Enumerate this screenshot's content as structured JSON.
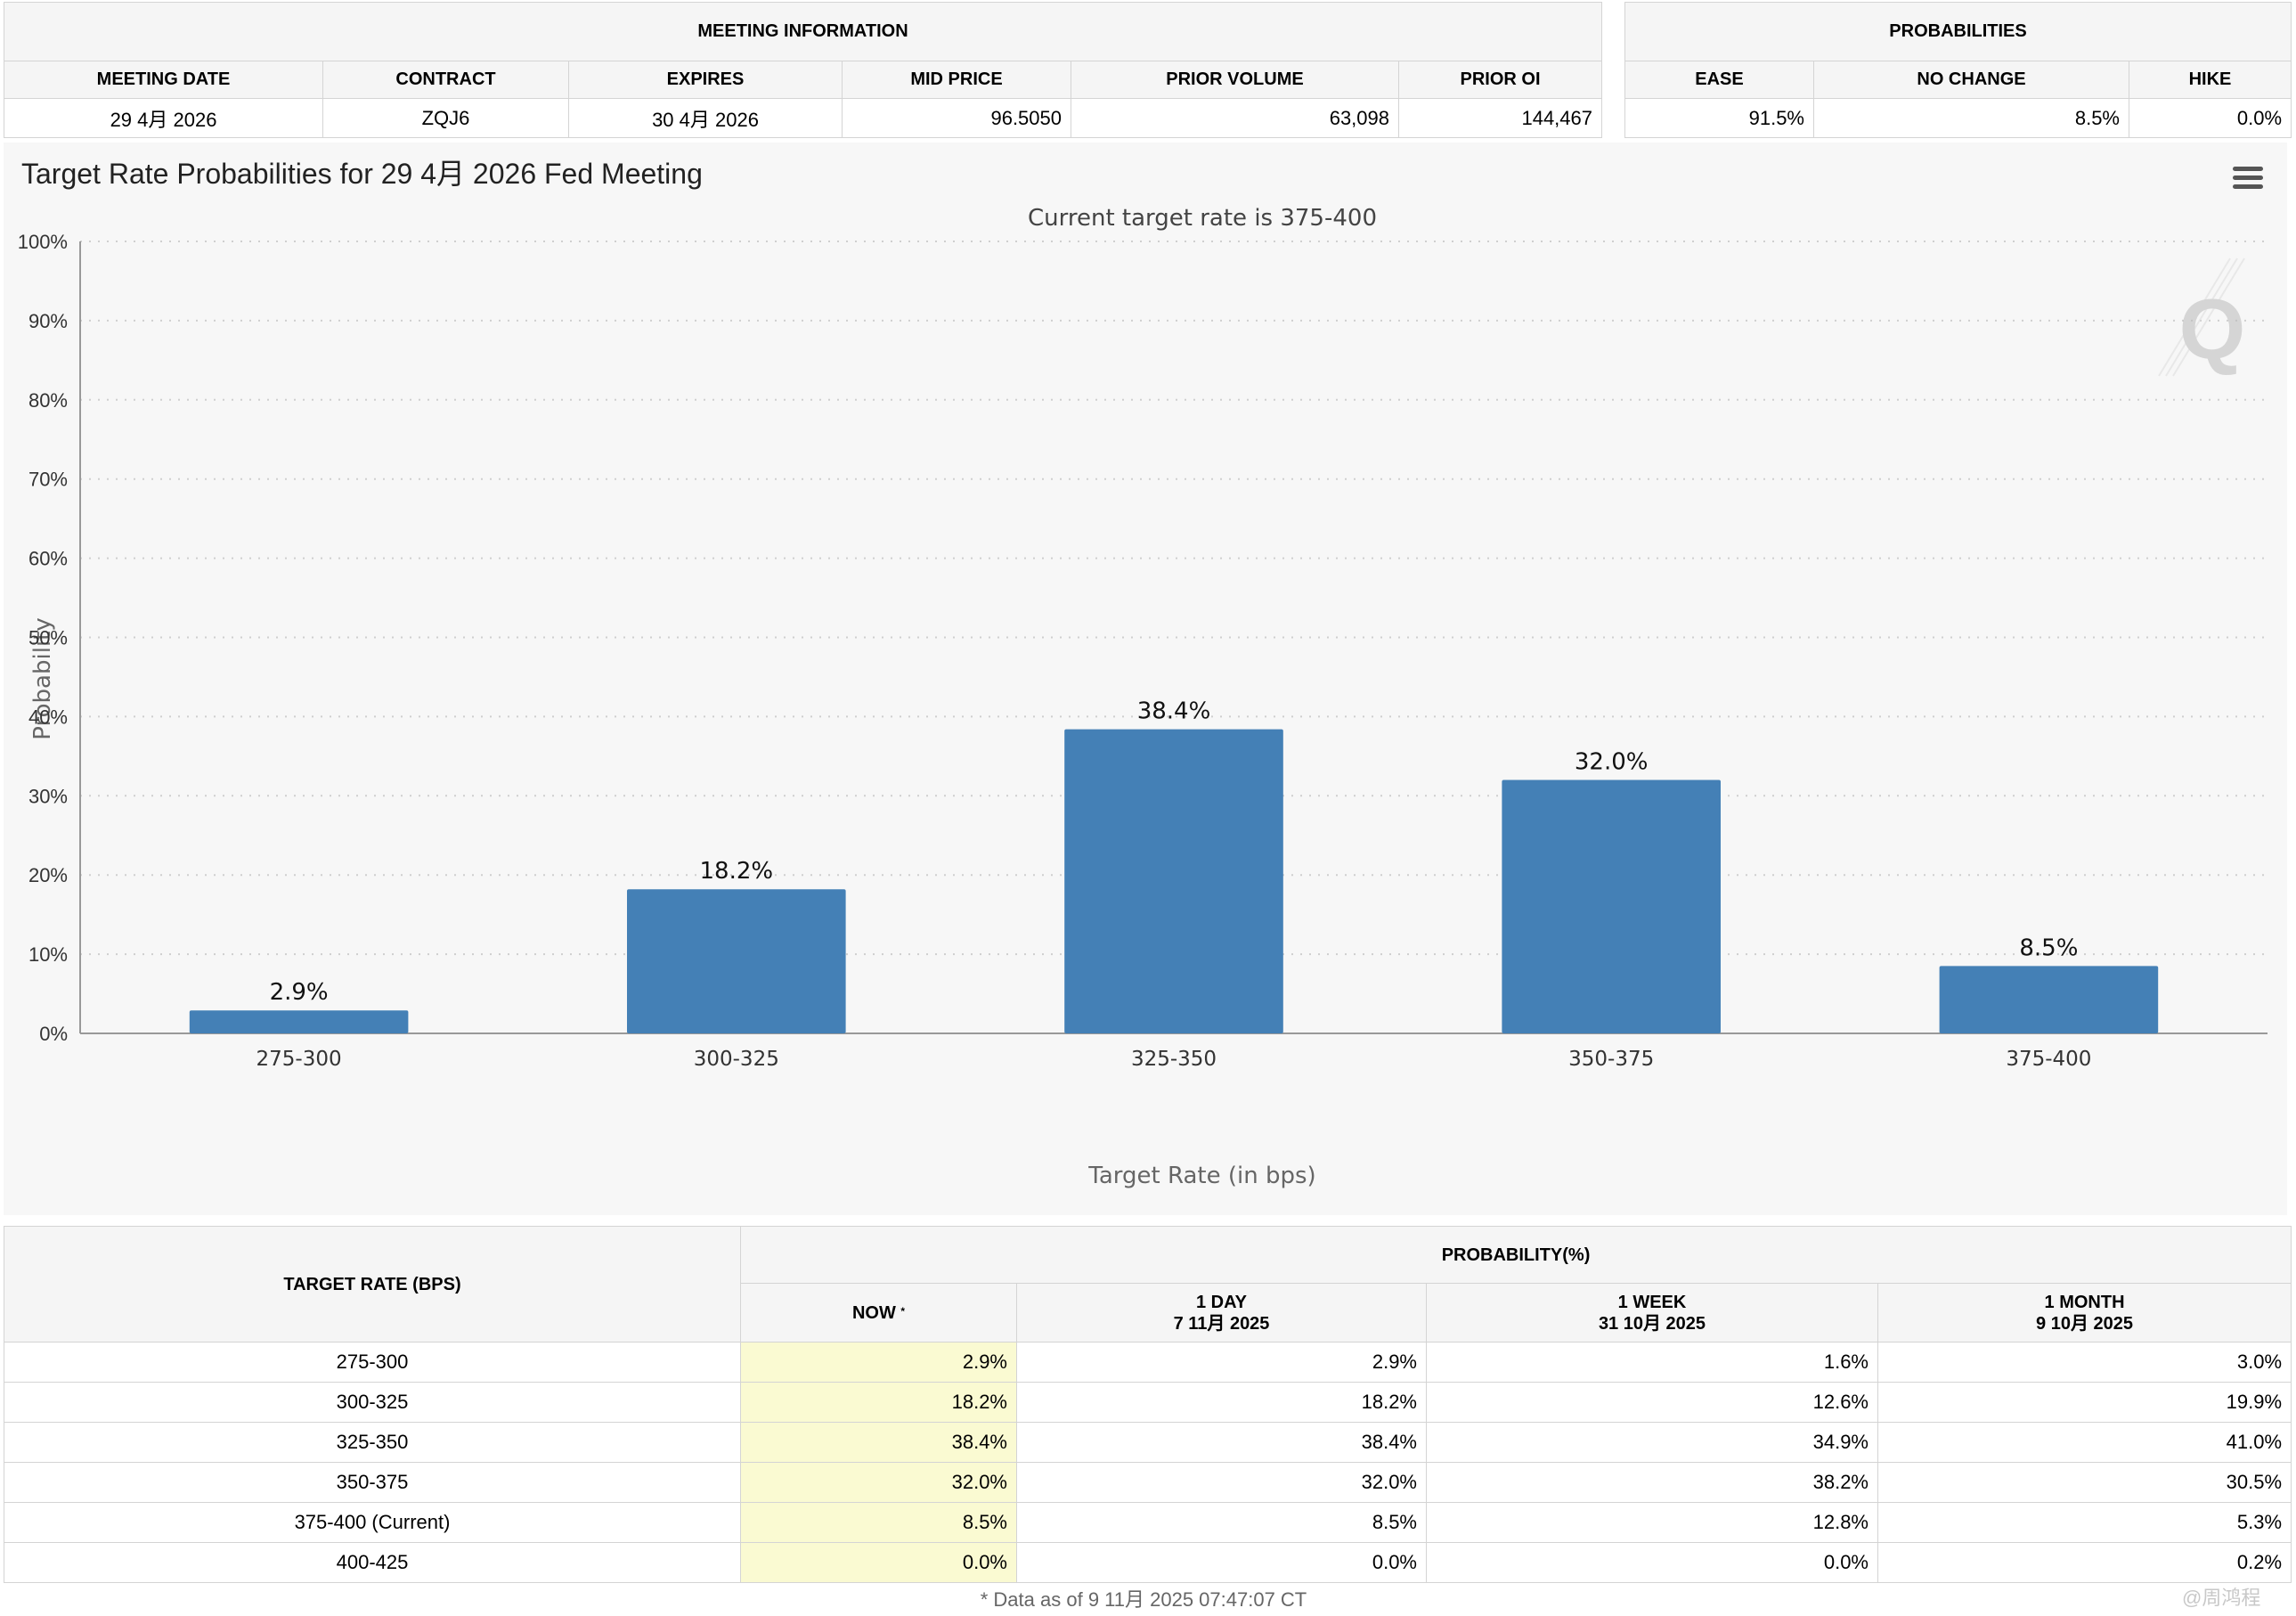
{
  "meeting_info": {
    "title": "MEETING INFORMATION",
    "headers": [
      "MEETING DATE",
      "CONTRACT",
      "EXPIRES",
      "MID PRICE",
      "PRIOR VOLUME",
      "PRIOR OI"
    ],
    "values": [
      "29 4月 2026",
      "ZQJ6",
      "30 4月 2026",
      "96.5050",
      "63,098",
      "144,467"
    ]
  },
  "probabilities_summary": {
    "title": "PROBABILITIES",
    "headers": [
      "EASE",
      "NO CHANGE",
      "HIKE"
    ],
    "values": [
      "91.5%",
      "8.5%",
      "0.0%"
    ]
  },
  "chart_data": {
    "type": "bar",
    "title": "Target Rate Probabilities for 29 4月 2026 Fed Meeting",
    "subtitle": "Current target rate is 375-400",
    "xlabel": "Target Rate (in bps)",
    "ylabel": "Probability",
    "categories": [
      "275-300",
      "300-325",
      "325-350",
      "350-375",
      "375-400"
    ],
    "values": [
      2.9,
      18.2,
      38.4,
      32.0,
      8.5
    ],
    "data_labels": [
      "2.9%",
      "18.2%",
      "38.4%",
      "32.0%",
      "8.5%"
    ],
    "ylim": [
      0,
      100
    ],
    "yticks": [
      0,
      10,
      20,
      30,
      40,
      50,
      60,
      70,
      80,
      90,
      100
    ],
    "ytick_labels": [
      "0%",
      "10%",
      "20%",
      "30%",
      "40%",
      "50%",
      "60%",
      "70%",
      "80%",
      "90%",
      "100%"
    ],
    "grid": true,
    "bar_color": "#4480b6",
    "logo_letter": "Q"
  },
  "probability_table": {
    "rate_header": "TARGET RATE (BPS)",
    "group_header": "PROBABILITY(%)",
    "columns": [
      {
        "label": "NOW",
        "marker": "*",
        "date": ""
      },
      {
        "label": "1 DAY",
        "date": "7 11月 2025"
      },
      {
        "label": "1 WEEK",
        "date": "31 10月 2025"
      },
      {
        "label": "1 MONTH",
        "date": "9 10月 2025"
      }
    ],
    "rows": [
      {
        "rate": "275-300",
        "now": "2.9%",
        "day": "2.9%",
        "week": "1.6%",
        "month": "3.0%"
      },
      {
        "rate": "300-325",
        "now": "18.2%",
        "day": "18.2%",
        "week": "12.6%",
        "month": "19.9%"
      },
      {
        "rate": "325-350",
        "now": "38.4%",
        "day": "38.4%",
        "week": "34.9%",
        "month": "41.0%"
      },
      {
        "rate": "350-375",
        "now": "32.0%",
        "day": "32.0%",
        "week": "38.2%",
        "month": "30.5%"
      },
      {
        "rate": "375-400 (Current)",
        "now": "8.5%",
        "day": "8.5%",
        "week": "12.8%",
        "month": "5.3%"
      },
      {
        "rate": "400-425",
        "now": "0.0%",
        "day": "0.0%",
        "week": "0.0%",
        "month": "0.2%"
      }
    ],
    "footnote": "* Data as of 9 11月 2025 07:47:07 CT"
  },
  "watermark": "@周鸿程"
}
